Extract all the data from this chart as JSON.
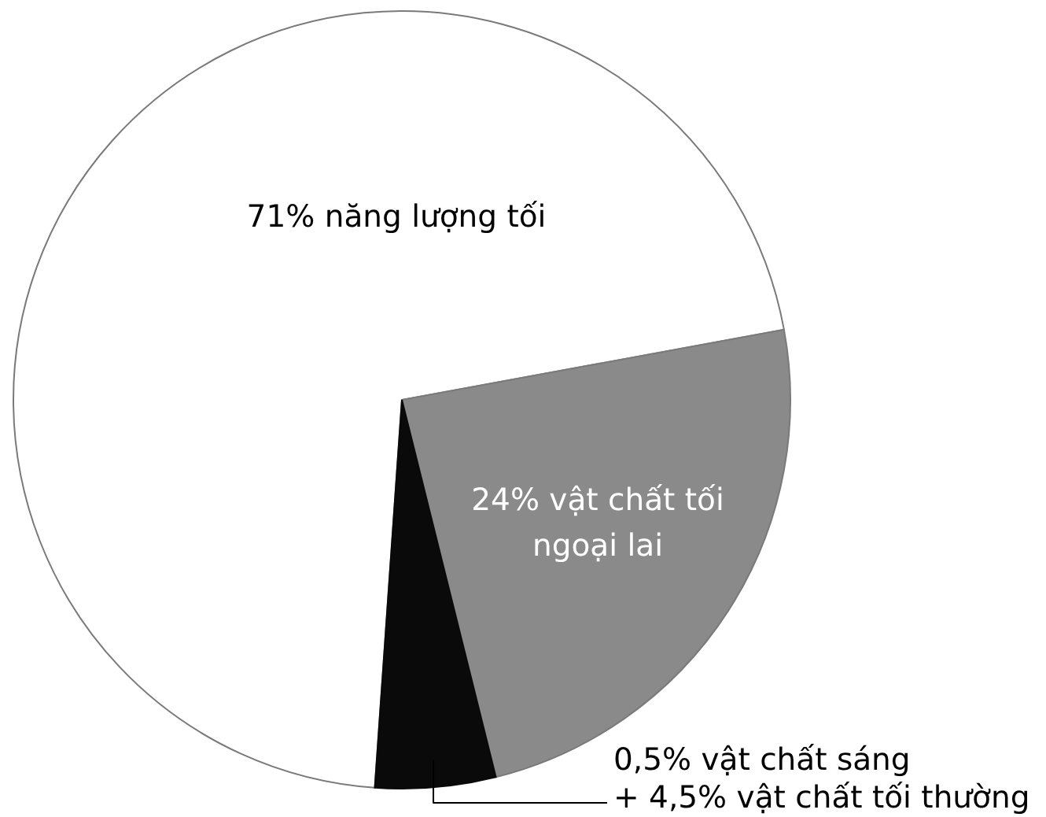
{
  "chart_data": {
    "type": "pie",
    "categories": [
      "71% năng lượng tối",
      "24% vật chất tối\nngoại lai",
      "0,5% vật chất sáng\n+ 4,5% vật chất tối thường"
    ],
    "values": [
      71,
      24,
      5
    ],
    "colors": [
      "#ffffff",
      "#8a8a8a",
      "#0a0a0a"
    ]
  }
}
